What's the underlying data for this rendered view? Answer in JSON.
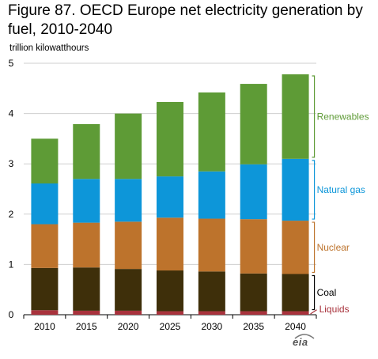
{
  "title": "Figure 87. OECD Europe net electricity generation by fuel, 2010-2040",
  "units_label": "trillion kilowatthours",
  "logo": "eia",
  "chart_data": {
    "type": "bar",
    "stacked": true,
    "title": "Figure 87. OECD Europe net electricity generation by fuel, 2010-2040",
    "ylabel": "trillion kilowatthours",
    "xlabel": "",
    "ylim": [
      0,
      5
    ],
    "yticks": [
      0,
      1,
      2,
      3,
      4,
      5
    ],
    "grid": true,
    "legend": "right, inline labels beside 2040 bar",
    "categories": [
      "2010",
      "2015",
      "2020",
      "2025",
      "2030",
      "2035",
      "2040"
    ],
    "series": [
      {
        "name": "Liquids",
        "color": "#a8323c",
        "values": [
          0.09,
          0.08,
          0.08,
          0.07,
          0.07,
          0.07,
          0.07
        ]
      },
      {
        "name": "Coal",
        "color": "#3e2f0a",
        "values": [
          0.84,
          0.86,
          0.83,
          0.81,
          0.79,
          0.75,
          0.74
        ]
      },
      {
        "name": "Nuclear",
        "color": "#bd732c",
        "values": [
          0.87,
          0.89,
          0.94,
          1.05,
          1.05,
          1.08,
          1.06
        ]
      },
      {
        "name": "Natural gas",
        "color": "#0d96d9",
        "values": [
          0.81,
          0.87,
          0.85,
          0.82,
          0.94,
          1.09,
          1.23
        ]
      },
      {
        "name": "Renewables",
        "color": "#5e9b36",
        "values": [
          0.89,
          1.09,
          1.3,
          1.48,
          1.57,
          1.6,
          1.68
        ]
      }
    ]
  }
}
